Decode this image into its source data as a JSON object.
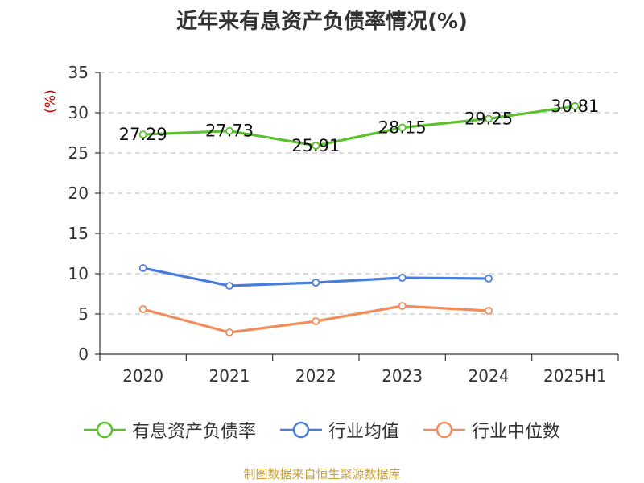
{
  "chart_data": {
    "type": "line",
    "title": "近年来有息资产负债率情况(%)",
    "ylabel": "(%)",
    "categories": [
      "2020",
      "2021",
      "2022",
      "2023",
      "2024",
      "2025H1"
    ],
    "ylim": [
      0,
      35
    ],
    "yticks": [
      0,
      5,
      10,
      15,
      20,
      25,
      30,
      35
    ],
    "grid": true,
    "legend_position": "bottom",
    "series": [
      {
        "name": "有息资产负债率",
        "color": "#5cc12e",
        "values": [
          27.29,
          27.73,
          25.91,
          28.15,
          29.25,
          30.81
        ],
        "show_labels": true
      },
      {
        "name": "行业均值",
        "color": "#4a7ddb",
        "values": [
          10.7,
          8.5,
          8.9,
          9.5,
          9.4,
          null
        ],
        "show_labels": false
      },
      {
        "name": "行业中位数",
        "color": "#f28c5a",
        "values": [
          5.6,
          2.7,
          4.1,
          6.0,
          5.4,
          null
        ],
        "show_labels": false
      }
    ]
  },
  "source": "制图数据来自恒生聚源数据库"
}
